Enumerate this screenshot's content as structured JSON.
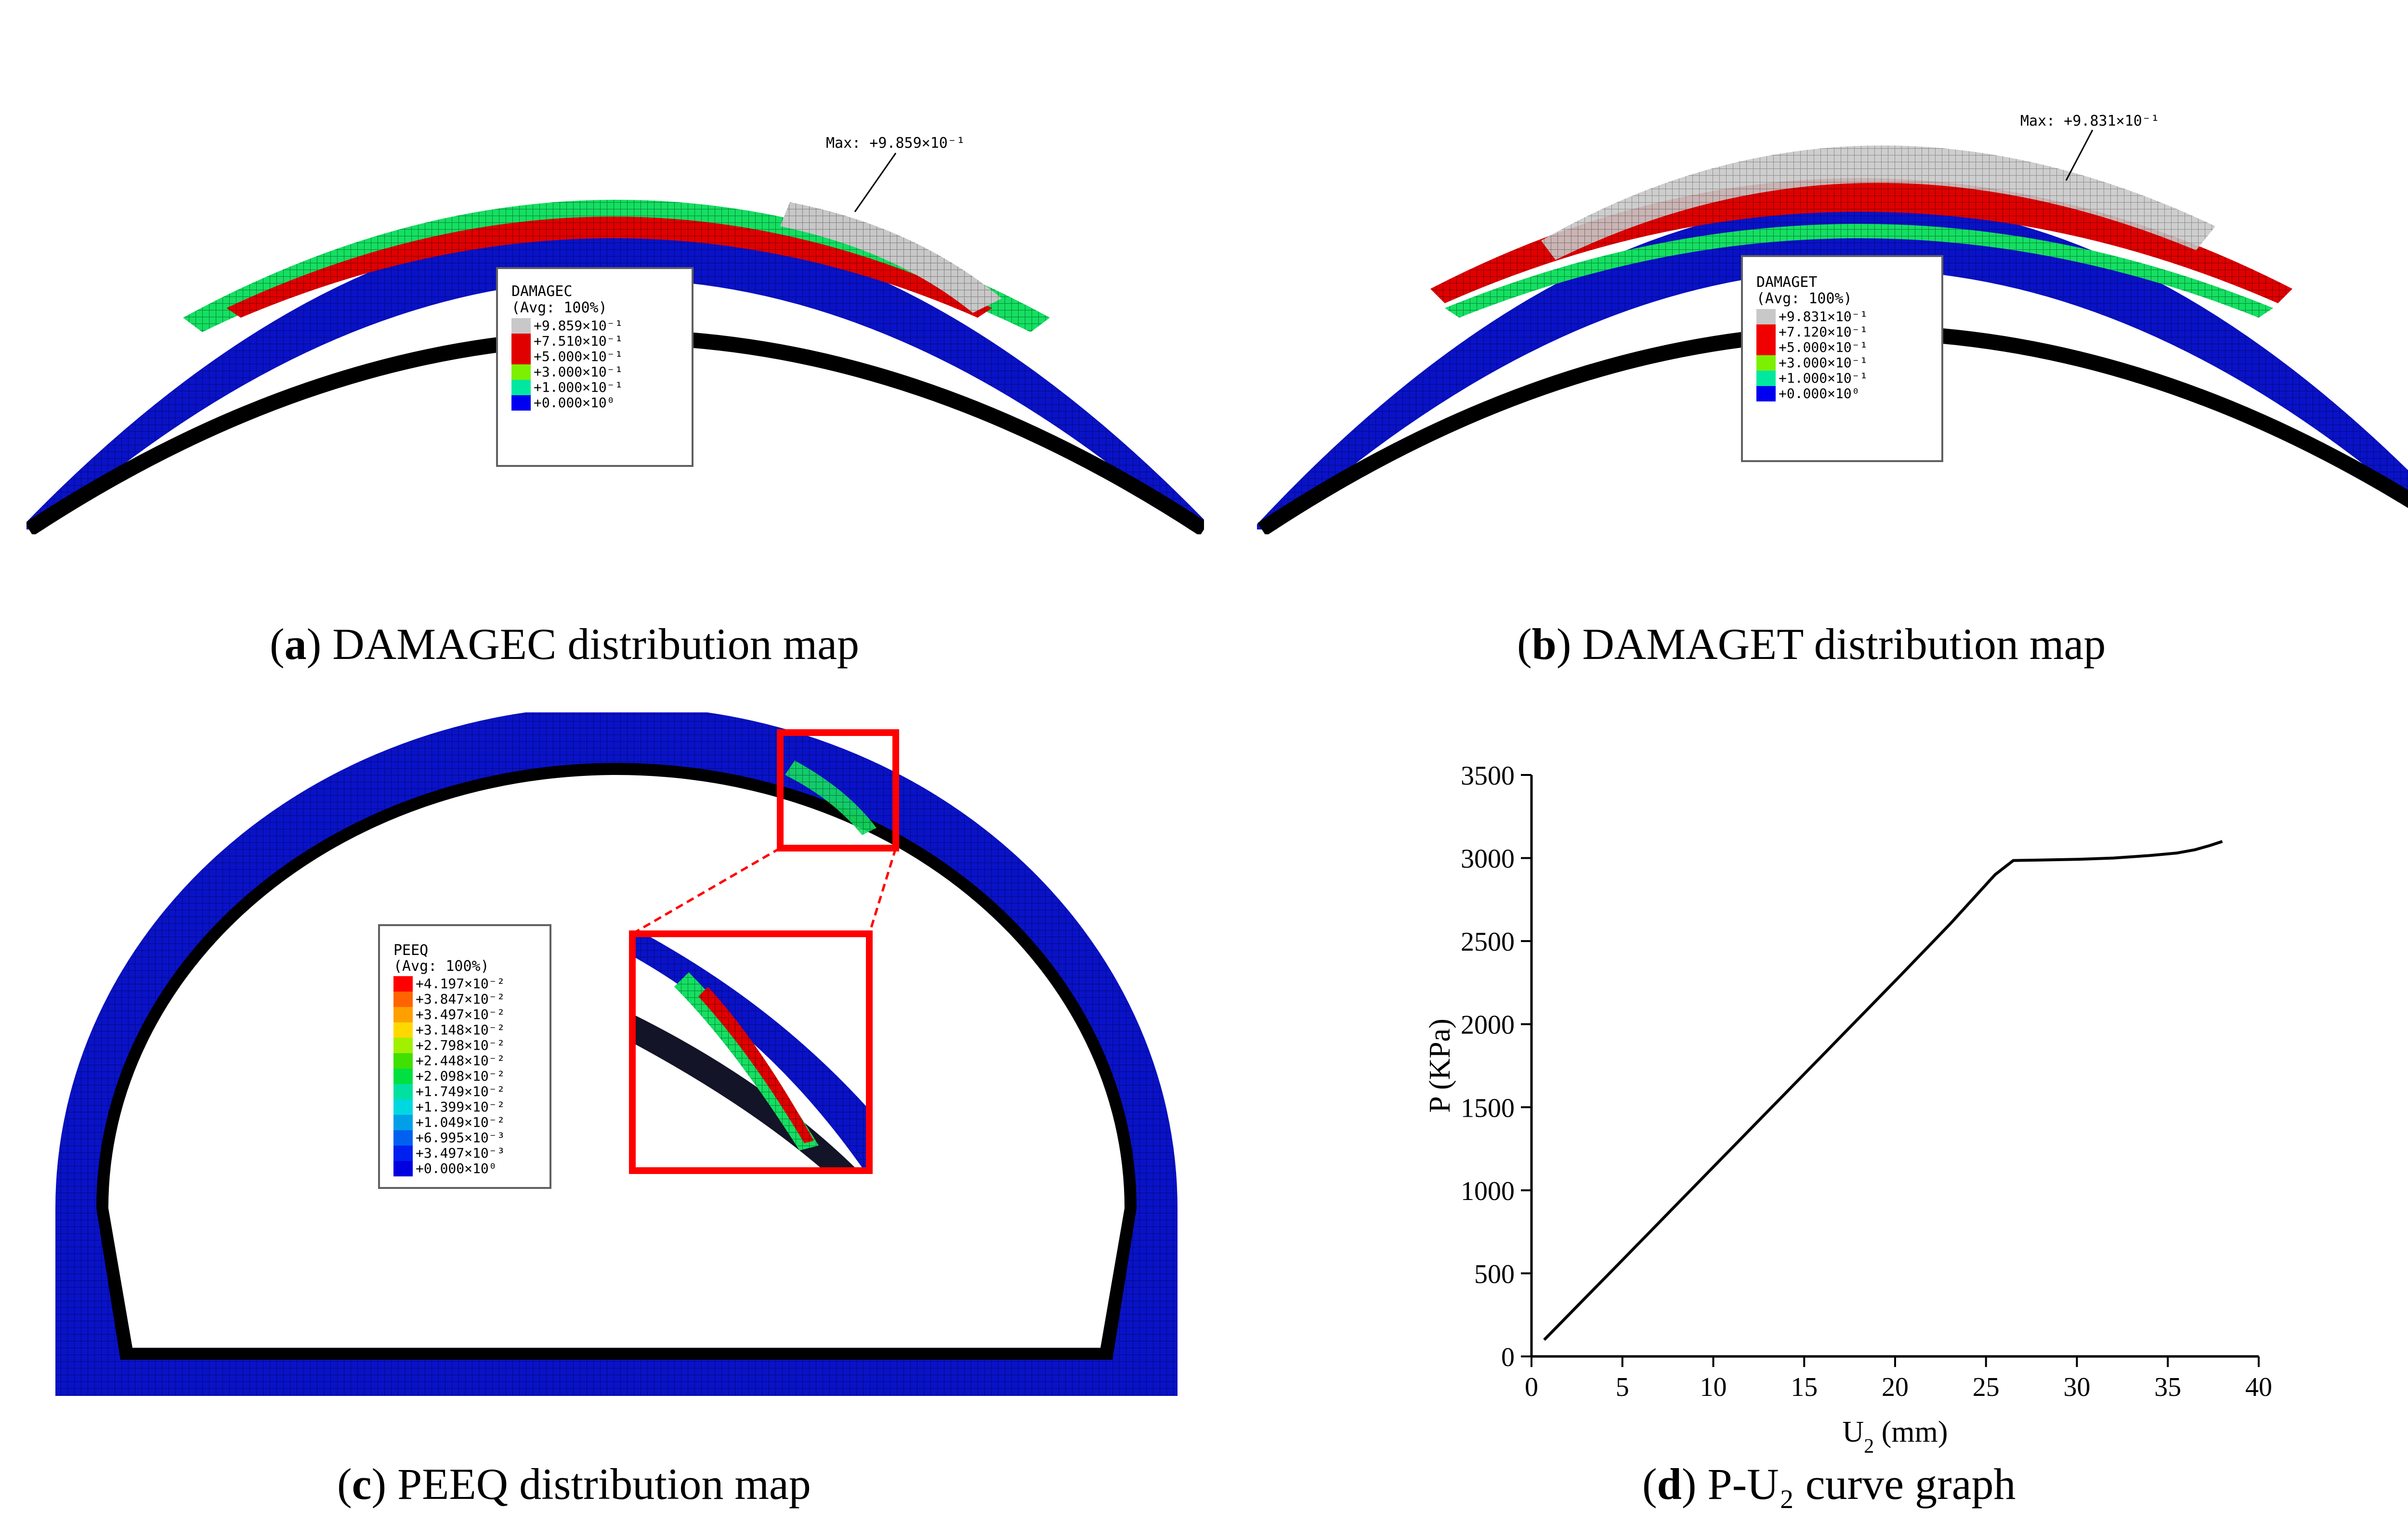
{
  "panels": {
    "a": {
      "caption_letter": "a",
      "caption_text": " DAMAGEC distribution map",
      "max_label": "Max: +9.859×10⁻¹",
      "legend_title": "DAMAGEC",
      "legend_avg": "(Avg: 100%)",
      "legend_entries": [
        "+9.859×10⁻¹",
        "+7.510×10⁻¹",
        "+5.000×10⁻¹",
        "+3.000×10⁻¹",
        "+1.000×10⁻¹",
        "+0.000×10⁰"
      ],
      "legend_colors": [
        "#c8c8c8",
        "#e00000",
        "#e00000",
        "#7cf000",
        "#00e8a0",
        "#0000f0"
      ]
    },
    "b": {
      "caption_letter": "b",
      "caption_text": " DAMAGET distribution map",
      "max_label": "Max: +9.831×10⁻¹",
      "legend_title": "DAMAGET",
      "legend_avg": "(Avg: 100%)",
      "legend_entries": [
        "+9.831×10⁻¹",
        "+7.120×10⁻¹",
        "+5.000×10⁻¹",
        "+3.000×10⁻¹",
        "+1.000×10⁻¹",
        "+0.000×10⁰"
      ],
      "legend_colors": [
        "#c8c8c8",
        "#f00000",
        "#f00000",
        "#7cf000",
        "#00e8a0",
        "#0000f0"
      ]
    },
    "c": {
      "caption_letter": "c",
      "caption_text": " PEEQ distribution map",
      "legend_title": "PEEQ",
      "legend_avg": "(Avg: 100%)",
      "legend_entries": [
        "+4.197×10⁻²",
        "+3.847×10⁻²",
        "+3.497×10⁻²",
        "+3.148×10⁻²",
        "+2.798×10⁻²",
        "+2.448×10⁻²",
        "+2.098×10⁻²",
        "+1.749×10⁻²",
        "+1.399×10⁻²",
        "+1.049×10⁻²",
        "+6.995×10⁻³",
        "+3.497×10⁻³",
        "+0.000×10⁰"
      ],
      "legend_colors": [
        "#ff0000",
        "#ff6400",
        "#ffa000",
        "#ffd800",
        "#a0f000",
        "#40e000",
        "#00e040",
        "#00e0a0",
        "#00d8e0",
        "#00a0e8",
        "#0060f0",
        "#0020f0",
        "#0000e0"
      ]
    },
    "d": {
      "caption_letter": "d",
      "caption_text": " P-U₂ curve graph"
    }
  },
  "chart_data": {
    "type": "line",
    "title": "",
    "xlabel": "U",
    "xlabel_sub": "2",
    "xlabel_unit": " (mm)",
    "ylabel": "P (KPa)",
    "xlim": [
      0,
      40
    ],
    "ylim": [
      0,
      3500
    ],
    "xticks": [
      0,
      5,
      10,
      15,
      20,
      25,
      30,
      35,
      40
    ],
    "yticks": [
      0,
      500,
      1000,
      1500,
      2000,
      2500,
      3000,
      3500
    ],
    "series": [
      {
        "name": "P-U2",
        "x": [
          0.7,
          5,
          10,
          15,
          20,
          23,
          25.5,
          26.5,
          28,
          30,
          32,
          34,
          35.5,
          36.5,
          37.3,
          38
        ],
        "y": [
          100,
          580,
          1140,
          1700,
          2260,
          2600,
          2900,
          2985,
          2988,
          2992,
          3000,
          3015,
          3030,
          3050,
          3075,
          3100
        ]
      }
    ]
  }
}
